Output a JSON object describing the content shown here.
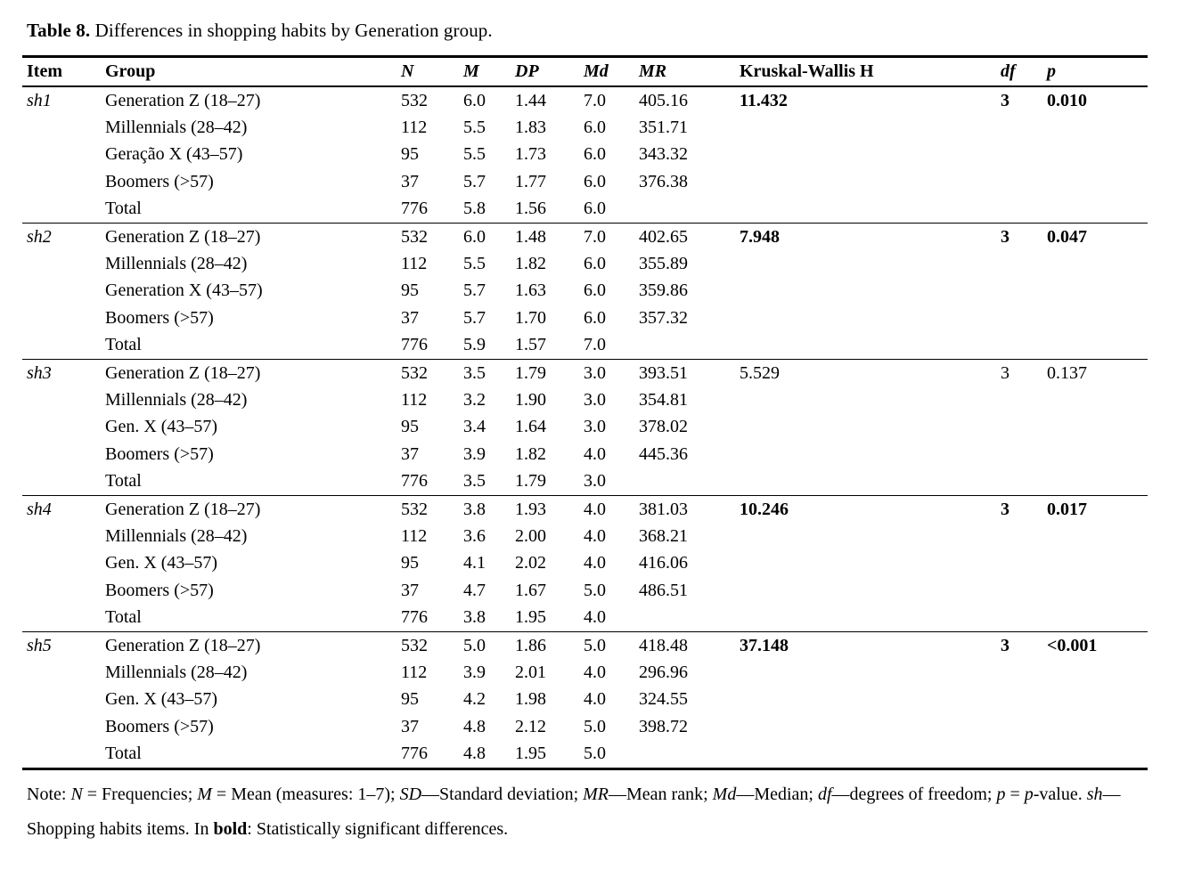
{
  "page": {
    "title_label": "Table 8.",
    "title_text": " Differences in shopping habits by Generation group."
  },
  "table": {
    "headers": {
      "item": "Item",
      "group": "Group",
      "n": "N",
      "m": "M",
      "dp": "DP",
      "md": "Md",
      "mr": "MR",
      "kw": "Kruskal-Wallis H",
      "df": "df",
      "p": "p"
    },
    "blocks": [
      {
        "item": "sh1",
        "kw_h": "11.432",
        "df": "3",
        "p": "0.010",
        "significant": true,
        "rows": [
          {
            "group": "Generation Z (18–27)",
            "n": "532",
            "m": "6.0",
            "dp": "1.44",
            "md": "7.0",
            "mr": "405.16"
          },
          {
            "group": "Millennials (28–42)",
            "n": "112",
            "m": "5.5",
            "dp": "1.83",
            "md": "6.0",
            "mr": "351.71"
          },
          {
            "group": "Geração X (43–57)",
            "n": "95",
            "m": "5.5",
            "dp": "1.73",
            "md": "6.0",
            "mr": "343.32"
          },
          {
            "group": "Boomers (>57)",
            "n": "37",
            "m": "5.7",
            "dp": "1.77",
            "md": "6.0",
            "mr": "376.38"
          },
          {
            "group": "Total",
            "n": "776",
            "m": "5.8",
            "dp": "1.56",
            "md": "6.0",
            "mr": ""
          }
        ]
      },
      {
        "item": "sh2",
        "kw_h": "7.948",
        "df": "3",
        "p": "0.047",
        "significant": true,
        "rows": [
          {
            "group": "Generation Z (18–27)",
            "n": "532",
            "m": "6.0",
            "dp": "1.48",
            "md": "7.0",
            "mr": "402.65"
          },
          {
            "group": "Millennials (28–42)",
            "n": "112",
            "m": "5.5",
            "dp": "1.82",
            "md": "6.0",
            "mr": "355.89"
          },
          {
            "group": "Generation X (43–57)",
            "n": "95",
            "m": "5.7",
            "dp": "1.63",
            "md": "6.0",
            "mr": "359.86"
          },
          {
            "group": "Boomers (>57)",
            "n": "37",
            "m": "5.7",
            "dp": "1.70",
            "md": "6.0",
            "mr": "357.32"
          },
          {
            "group": "Total",
            "n": "776",
            "m": "5.9",
            "dp": "1.57",
            "md": "7.0",
            "mr": ""
          }
        ]
      },
      {
        "item": "sh3",
        "kw_h": "5.529",
        "df": "3",
        "p": "0.137",
        "significant": false,
        "rows": [
          {
            "group": "Generation Z (18–27)",
            "n": "532",
            "m": "3.5",
            "dp": "1.79",
            "md": "3.0",
            "mr": "393.51"
          },
          {
            "group": "Millennials (28–42)",
            "n": "112",
            "m": "3.2",
            "dp": "1.90",
            "md": "3.0",
            "mr": "354.81"
          },
          {
            "group": "Gen. X (43–57)",
            "n": "95",
            "m": "3.4",
            "dp": "1.64",
            "md": "3.0",
            "mr": "378.02"
          },
          {
            "group": "Boomers (>57)",
            "n": "37",
            "m": "3.9",
            "dp": "1.82",
            "md": "4.0",
            "mr": "445.36"
          },
          {
            "group": "Total",
            "n": "776",
            "m": "3.5",
            "dp": "1.79",
            "md": "3.0",
            "mr": ""
          }
        ]
      },
      {
        "item": "sh4",
        "kw_h": "10.246",
        "df": "3",
        "p": "0.017",
        "significant": true,
        "rows": [
          {
            "group": "Generation Z (18–27)",
            "n": "532",
            "m": "3.8",
            "dp": "1.93",
            "md": "4.0",
            "mr": "381.03"
          },
          {
            "group": "Millennials (28–42)",
            "n": "112",
            "m": "3.6",
            "dp": "2.00",
            "md": "4.0",
            "mr": "368.21"
          },
          {
            "group": "Gen. X (43–57)",
            "n": "95",
            "m": "4.1",
            "dp": "2.02",
            "md": "4.0",
            "mr": "416.06"
          },
          {
            "group": "Boomers (>57)",
            "n": "37",
            "m": "4.7",
            "dp": "1.67",
            "md": "5.0",
            "mr": "486.51"
          },
          {
            "group": "Total",
            "n": "776",
            "m": "3.8",
            "dp": "1.95",
            "md": "4.0",
            "mr": ""
          }
        ]
      },
      {
        "item": "sh5",
        "kw_h": "37.148",
        "df": "3",
        "p": "<0.001",
        "significant": true,
        "rows": [
          {
            "group": "Generation Z (18–27)",
            "n": "532",
            "m": "5.0",
            "dp": "1.86",
            "md": "5.0",
            "mr": "418.48"
          },
          {
            "group": "Millennials (28–42)",
            "n": "112",
            "m": "3.9",
            "dp": "2.01",
            "md": "4.0",
            "mr": "296.96"
          },
          {
            "group": "Gen. X (43–57)",
            "n": "95",
            "m": "4.2",
            "dp": "1.98",
            "md": "4.0",
            "mr": "324.55"
          },
          {
            "group": "Boomers (>57)",
            "n": "37",
            "m": "4.8",
            "dp": "2.12",
            "md": "5.0",
            "mr": "398.72"
          },
          {
            "group": "Total",
            "n": "776",
            "m": "4.8",
            "dp": "1.95",
            "md": "5.0",
            "mr": ""
          }
        ]
      }
    ]
  },
  "note": {
    "segments": [
      {
        "text": "Note: ",
        "style": "plain"
      },
      {
        "text": "N",
        "style": "italic"
      },
      {
        "text": " = Frequencies; ",
        "style": "plain"
      },
      {
        "text": "M",
        "style": "italic"
      },
      {
        "text": " = Mean (measures: 1–7); ",
        "style": "plain"
      },
      {
        "text": "SD",
        "style": "italic"
      },
      {
        "text": "—Standard deviation; ",
        "style": "plain"
      },
      {
        "text": "MR",
        "style": "italic"
      },
      {
        "text": "—Mean rank; ",
        "style": "plain"
      },
      {
        "text": "Md",
        "style": "italic"
      },
      {
        "text": "—Median; ",
        "style": "plain"
      },
      {
        "text": "df",
        "style": "italic"
      },
      {
        "text": "—degrees of freedom; ",
        "style": "plain"
      },
      {
        "text": "p",
        "style": "italic"
      },
      {
        "text": " = ",
        "style": "plain"
      },
      {
        "text": "p",
        "style": "italic"
      },
      {
        "text": "-value. ",
        "style": "plain"
      },
      {
        "text": "sh",
        "style": "italic"
      },
      {
        "text": "—Shopping habits items. In ",
        "style": "plain"
      },
      {
        "text": "bold",
        "style": "bold"
      },
      {
        "text": ": Statistically significant differences.",
        "style": "plain"
      }
    ]
  },
  "colors": {
    "text": "#000000",
    "background": "#ffffff",
    "rule": "#000000"
  }
}
